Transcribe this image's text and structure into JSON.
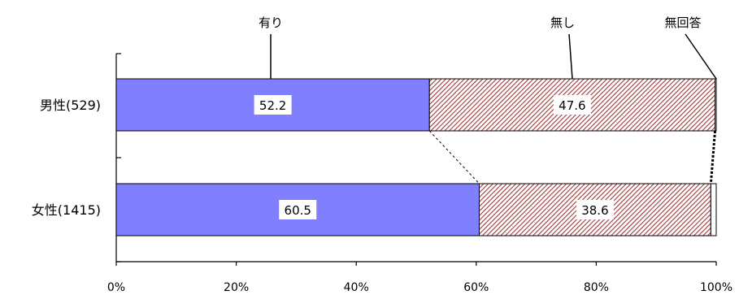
{
  "chart_data": {
    "type": "bar",
    "orientation": "horizontal",
    "stacked": "percent",
    "categories": [
      "男性(529)",
      "女性(1415)"
    ],
    "series": [
      {
        "name": "有り",
        "values": [
          52.2,
          60.5
        ],
        "color": "#8080ff",
        "pattern": "solid"
      },
      {
        "name": "無し",
        "values": [
          47.6,
          38.6
        ],
        "color": "#c06060",
        "pattern": "diagonal-hatch"
      },
      {
        "name": "無回答",
        "values": [
          0.2,
          0.9
        ],
        "color": "#ffffff",
        "pattern": "solid"
      }
    ],
    "data_labels": [
      [
        "52.2",
        "47.6"
      ],
      [
        "60.5",
        "38.6"
      ]
    ],
    "x_ticks": [
      "0%",
      "20%",
      "40%",
      "60%",
      "80%",
      "100%"
    ],
    "xlim": [
      0,
      100
    ],
    "series_lines": true,
    "legend": "callout labels above bars",
    "grid": false
  }
}
